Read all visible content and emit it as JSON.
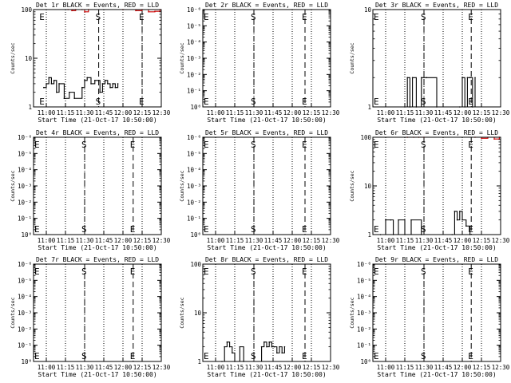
{
  "figure": {
    "xlabel": "Start Time (21-Oct-17 10:50:00)",
    "ylabel": "Counts/sec",
    "x_ticks": [
      "11:00",
      "11:15",
      "11:30",
      "11:45",
      "12:00",
      "12:15",
      "12:30"
    ]
  },
  "chart_data": [
    {
      "type": "line",
      "title": "Det 1r BLACK = Events, RED = LLD",
      "xlabel": "Start Time (21-Oct-17 10:50:00)",
      "ylabel": "Counts/sec",
      "x_ticks": [
        "11:00",
        "11:15",
        "11:30",
        "11:45",
        "12:00",
        "12:15",
        "12:30"
      ],
      "y_scale": "log",
      "y_ticks": [
        "1",
        "10",
        "100"
      ],
      "ylim": [
        1,
        100
      ],
      "markers": [
        {
          "label": "E",
          "x": "10:57"
        },
        {
          "label": "S",
          "x": "11:41"
        },
        {
          "label": "E",
          "x": "12:15"
        }
      ],
      "series": [
        {
          "name": "Events",
          "color": "#000000",
          "x": [
            "10:58",
            "11:00",
            "11:02",
            "11:04",
            "11:06",
            "11:08",
            "11:10",
            "11:14",
            "11:18",
            "11:22",
            "11:28",
            "11:30",
            "11:32",
            "11:35",
            "11:38",
            "11:42",
            "11:44",
            "11:46",
            "11:48",
            "11:50",
            "11:52",
            "11:54",
            "11:56"
          ],
          "y": [
            2.5,
            3,
            4,
            3,
            3.5,
            2,
            3,
            1.5,
            2,
            1.5,
            2.5,
            3.5,
            4,
            3,
            3.5,
            2,
            3,
            3.5,
            3,
            2.5,
            3,
            2.5,
            3
          ]
        },
        {
          "name": "LLD",
          "color": "#cc0000",
          "x": [
            "11:17",
            "11:20",
            "11:23",
            "11:28",
            "11:30",
            "11:33",
            "12:00",
            "12:10",
            "12:15",
            "12:20",
            "12:25",
            "12:29"
          ],
          "y": [
            100,
            95,
            100,
            100,
            90,
            100,
            100,
            95,
            100,
            90,
            92,
            100
          ]
        }
      ]
    },
    {
      "type": "line",
      "title": "Det 2r BLACK = Events, RED = LLD",
      "xlabel": "Start Time (21-Oct-17 10:50:00)",
      "ylabel": "Counts/sec",
      "x_ticks": [
        "11:00",
        "11:15",
        "11:30",
        "11:45",
        "12:00",
        "12:15",
        "12:30"
      ],
      "y_scale": "log",
      "y_ticks": [
        "10⁰",
        "10⁻¹",
        "10⁻²",
        "10⁻³",
        "10⁻⁴",
        "10⁻⁵",
        "10⁻⁶"
      ],
      "ylim": [
        1,
        1e-06
      ],
      "markers": [
        {
          "label": "E",
          "x": "10:50"
        },
        {
          "label": "S",
          "x": "11:30"
        },
        {
          "label": "E",
          "x": "12:10"
        }
      ],
      "series": []
    },
    {
      "type": "line",
      "title": "Det 3r BLACK = Events, RED = LLD",
      "xlabel": "Start Time (21-Oct-17 10:50:00)",
      "ylabel": "Counts/sec",
      "x_ticks": [
        "11:00",
        "11:15",
        "11:30",
        "11:45",
        "12:00",
        "12:15",
        "12:30"
      ],
      "y_scale": "log",
      "y_ticks": [
        "1",
        "10"
      ],
      "ylim": [
        1,
        10
      ],
      "markers": [
        {
          "label": "E",
          "x": "10:50"
        },
        {
          "label": "S",
          "x": "11:30"
        },
        {
          "label": "E",
          "x": "12:07"
        }
      ],
      "series": [
        {
          "name": "Events",
          "color": "#000000",
          "x": [
            "11:15",
            "11:17",
            "11:19",
            "11:21",
            "11:24",
            "11:28",
            "11:32",
            "11:40",
            "11:58",
            "12:00",
            "12:02",
            "12:04",
            "12:06",
            "12:08",
            "12:10"
          ],
          "y": [
            1,
            2,
            1,
            2,
            1,
            2,
            2,
            1,
            1,
            2,
            1,
            2,
            2,
            1,
            2
          ]
        }
      ]
    },
    {
      "type": "line",
      "title": "Det 4r BLACK = Events, RED = LLD",
      "xlabel": "Start Time (21-Oct-17 10:50:00)",
      "ylabel": "Counts/sec",
      "x_ticks": [
        "11:00",
        "11:15",
        "11:30",
        "11:45",
        "12:00",
        "12:15",
        "12:30"
      ],
      "y_scale": "log",
      "y_ticks": [
        "10⁰",
        "10⁻¹",
        "10⁻²",
        "10⁻³",
        "10⁻⁴",
        "10⁻⁵",
        "10⁻⁶"
      ],
      "ylim": [
        1,
        1e-06
      ],
      "markers": [
        {
          "label": "E",
          "x": "10:51"
        },
        {
          "label": "S",
          "x": "11:30"
        },
        {
          "label": "E",
          "x": "12:08"
        }
      ],
      "series": []
    },
    {
      "type": "line",
      "title": "Det 5r BLACK = Events, RED = LLD",
      "xlabel": "Start Time (21-Oct-17 10:50:00)",
      "ylabel": "Counts/sec",
      "x_ticks": [
        "11:00",
        "11:15",
        "11:30",
        "11:45",
        "12:00",
        "12:15",
        "12:30"
      ],
      "y_scale": "log",
      "y_ticks": [
        "10⁰",
        "10⁻¹",
        "10⁻²",
        "10⁻³",
        "10⁻⁴",
        "10⁻⁵",
        "10⁻⁶"
      ],
      "ylim": [
        1,
        1e-06
      ],
      "markers": [
        {
          "label": "E",
          "x": "10:50"
        },
        {
          "label": "S",
          "x": "11:30"
        },
        {
          "label": "E",
          "x": "12:10"
        }
      ],
      "series": []
    },
    {
      "type": "line",
      "title": "Det 6r BLACK = Events, RED = LLD",
      "xlabel": "Start Time (21-Oct-17 10:50:00)",
      "ylabel": "Counts/sec",
      "x_ticks": [
        "11:00",
        "11:15",
        "11:30",
        "11:45",
        "12:00",
        "12:15",
        "12:30"
      ],
      "y_scale": "log",
      "y_ticks": [
        "1",
        "10",
        "100"
      ],
      "ylim": [
        1,
        100
      ],
      "markers": [
        {
          "label": "E",
          "x": "10:50"
        },
        {
          "label": "S",
          "x": "11:30"
        },
        {
          "label": "E",
          "x": "12:07"
        }
      ],
      "series": [
        {
          "name": "Events",
          "color": "#000000",
          "x": [
            "10:56",
            "11:00",
            "11:04",
            "11:06",
            "11:10",
            "11:15",
            "11:20",
            "11:28",
            "11:52",
            "11:54",
            "11:56",
            "11:58",
            "12:00",
            "12:03",
            "12:06"
          ],
          "y": [
            1,
            2,
            2,
            1,
            2,
            1,
            2,
            1,
            1,
            3,
            2,
            3,
            2,
            1.5,
            1
          ]
        },
        {
          "name": "LLD",
          "color": "#cc0000",
          "x": [
            "11:17",
            "11:22",
            "11:26",
            "11:30",
            "12:10",
            "12:15",
            "12:20",
            "12:25",
            "12:29"
          ],
          "y": [
            100,
            100,
            100,
            100,
            100,
            95,
            100,
            92,
            100
          ]
        }
      ]
    },
    {
      "type": "line",
      "title": "Det 7r BLACK = Events, RED = LLD",
      "xlabel": "Start Time (21-Oct-17 10:50:00)",
      "ylabel": "Counts/sec",
      "x_ticks": [
        "11:00",
        "11:15",
        "11:30",
        "11:45",
        "12:00",
        "12:15",
        "12:30"
      ],
      "y_scale": "log",
      "y_ticks": [
        "10⁰",
        "10⁻¹",
        "10⁻²",
        "10⁻³",
        "10⁻⁴",
        "10⁻⁵",
        "10⁻⁶"
      ],
      "ylim": [
        1,
        1e-06
      ],
      "markers": [
        {
          "label": "E",
          "x": "10:50"
        },
        {
          "label": "S",
          "x": "11:30"
        },
        {
          "label": "E",
          "x": "12:08"
        }
      ],
      "series": []
    },
    {
      "type": "line",
      "title": "Det 8r BLACK = Events, RED = LLD",
      "xlabel": "Start Time (21-Oct-17 10:50:00)",
      "ylabel": "Counts/sec",
      "x_ticks": [
        "11:00",
        "11:15",
        "11:30",
        "11:45",
        "12:00",
        "12:15",
        "12:30"
      ],
      "y_scale": "log",
      "y_ticks": [
        "1",
        "10",
        "100"
      ],
      "ylim": [
        1,
        100
      ],
      "markers": [
        {
          "label": "E",
          "x": "10:50"
        },
        {
          "label": "S",
          "x": "11:30"
        },
        {
          "label": "E",
          "x": "12:10"
        }
      ],
      "series": [
        {
          "name": "Events",
          "color": "#000000",
          "x": [
            "11:05",
            "11:07",
            "11:09",
            "11:11",
            "11:13",
            "11:15",
            "11:19",
            "11:22",
            "11:36",
            "11:38",
            "11:40",
            "11:42",
            "11:44",
            "11:46",
            "11:48",
            "11:50",
            "11:52",
            "11:54"
          ],
          "y": [
            1,
            2,
            2.5,
            2,
            1.5,
            1,
            2,
            1,
            2,
            2.5,
            2,
            2.5,
            2,
            2,
            1.5,
            2,
            1.5,
            2
          ]
        }
      ]
    },
    {
      "type": "line",
      "title": "Det 9r BLACK = Events, RED = LLD",
      "xlabel": "Start Time (21-Oct-17 10:50:00)",
      "ylabel": "Counts/sec",
      "x_ticks": [
        "11:00",
        "11:15",
        "11:30",
        "11:45",
        "12:00",
        "12:15",
        "12:30"
      ],
      "y_scale": "log",
      "y_ticks": [
        "10⁰",
        "10⁻¹",
        "10⁻²",
        "10⁻³",
        "10⁻⁴",
        "10⁻⁵",
        "10⁻⁶"
      ],
      "ylim": [
        1,
        1e-06
      ],
      "markers": [
        {
          "label": "E",
          "x": "10:50"
        },
        {
          "label": "S",
          "x": "11:30"
        },
        {
          "label": "E",
          "x": "12:07"
        }
      ],
      "series": []
    }
  ]
}
